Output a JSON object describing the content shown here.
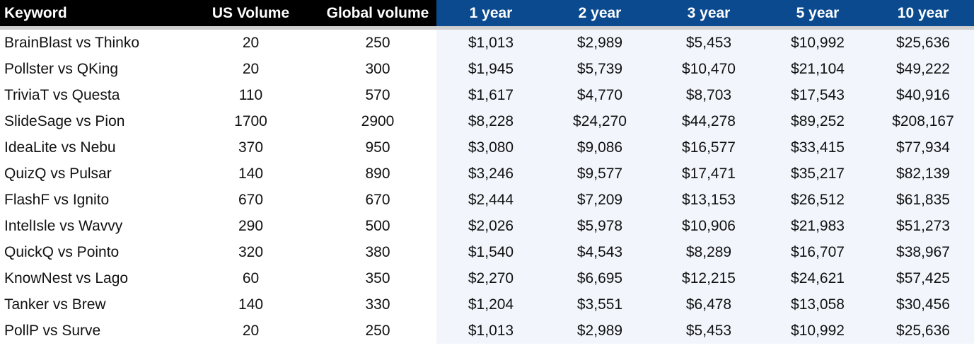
{
  "headers": [
    "Keyword",
    "US Volume",
    "Global volume",
    "1 year",
    "2 year",
    "3 year",
    "5 year",
    "10 year"
  ],
  "colors": {
    "header_dark": "#000000",
    "header_blue": "#0b4a8f",
    "money_bg": "#f2f6fc",
    "separator": "#cfcfcf"
  },
  "rows": [
    [
      "BrainBlast vs Thinko",
      "20",
      "250",
      "$1,013",
      "$2,989",
      "$5,453",
      "$10,992",
      "$25,636"
    ],
    [
      "Pollster vs QKing",
      "20",
      "300",
      "$1,945",
      "$5,739",
      "$10,470",
      "$21,104",
      "$49,222"
    ],
    [
      "TriviaT vs Questa",
      "110",
      "570",
      "$1,617",
      "$4,770",
      "$8,703",
      "$17,543",
      "$40,916"
    ],
    [
      "SlideSage vs Pion",
      "1700",
      "2900",
      "$8,228",
      "$24,270",
      "$44,278",
      "$89,252",
      "$208,167"
    ],
    [
      "IdeaLite vs Nebu",
      "370",
      "950",
      "$3,080",
      "$9,086",
      "$16,577",
      "$33,415",
      "$77,934"
    ],
    [
      "QuizQ vs Pulsar",
      "140",
      "890",
      "$3,246",
      "$9,577",
      "$17,471",
      "$35,217",
      "$82,139"
    ],
    [
      "FlashF vs Ignito",
      "670",
      "670",
      "$2,444",
      "$7,209",
      "$13,153",
      "$26,512",
      "$61,835"
    ],
    [
      "IntelIsle vs Wavvy",
      "290",
      "500",
      "$2,026",
      "$5,978",
      "$10,906",
      "$21,983",
      "$51,273"
    ],
    [
      "QuickQ vs Pointo",
      "320",
      "380",
      "$1,540",
      "$4,543",
      "$8,289",
      "$16,707",
      "$38,967"
    ],
    [
      "KnowNest vs Lago",
      "60",
      "350",
      "$2,270",
      "$6,695",
      "$12,215",
      "$24,621",
      "$57,425"
    ],
    [
      "Tanker vs Brew",
      "140",
      "330",
      "$1,204",
      "$3,551",
      "$6,478",
      "$13,058",
      "$30,456"
    ],
    [
      "PollP vs Surve",
      "20",
      "250",
      "$1,013",
      "$2,989",
      "$5,453",
      "$10,992",
      "$25,636"
    ]
  ]
}
